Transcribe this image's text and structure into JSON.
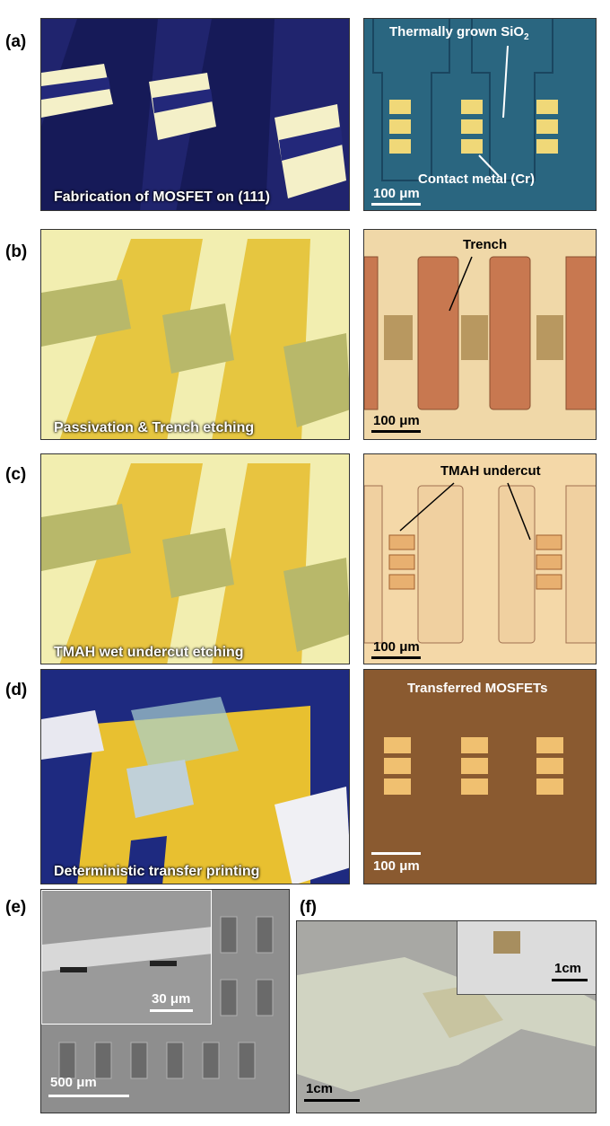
{
  "panels": [
    {
      "label": "(a)",
      "left": {
        "caption": "Fabrication of MOSFET on (111)"
      },
      "right": {
        "annotations": [
          {
            "text": "Thermally grown SiO",
            "subscript": "2"
          },
          {
            "text": "Contact metal (Cr)"
          }
        ],
        "scale_bar": "100 μm"
      }
    },
    {
      "label": "(b)",
      "left": {
        "caption": "Passivation & Trench etching"
      },
      "right": {
        "annotations": [
          {
            "text": "Trench"
          }
        ],
        "scale_bar": "100 μm"
      }
    },
    {
      "label": "(c)",
      "left": {
        "caption": "TMAH wet undercut etching"
      },
      "right": {
        "annotations": [
          {
            "text": "TMAH undercut"
          }
        ],
        "scale_bar": "100 μm"
      }
    },
    {
      "label": "(d)",
      "left": {
        "caption": "Deterministic transfer printing"
      },
      "right": {
        "annotations": [
          {
            "text": "Transferred MOSFETs"
          }
        ],
        "scale_bar": "100 μm"
      }
    },
    {
      "label": "(e)",
      "inset_scale_bar": "30 μm",
      "scale_bar": "500 μm"
    },
    {
      "label": "(f)",
      "inset_scale_bar": "1cm",
      "scale_bar": "1cm"
    }
  ]
}
